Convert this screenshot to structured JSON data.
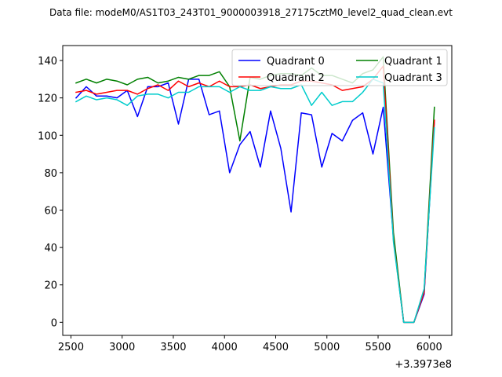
{
  "chart_data": {
    "type": "line",
    "title": "Data file: modeM0/AS1T03_243T01_9000003918_27175cztM0_level2_quad_clean.evt",
    "xlabel": "",
    "ylabel": "",
    "x_offset_label": "+3.3973e8",
    "xlim": [
      2420,
      6220
    ],
    "ylim": [
      -7,
      148
    ],
    "x_ticks": [
      2500,
      3000,
      3500,
      4000,
      4500,
      5000,
      5500,
      6000
    ],
    "x_tick_labels": [
      "2500",
      "3000",
      "3500",
      "4000",
      "4500",
      "5000",
      "5500",
      "6000"
    ],
    "y_ticks": [
      0,
      20,
      40,
      60,
      80,
      100,
      120,
      140
    ],
    "y_tick_labels": [
      "0",
      "20",
      "40",
      "60",
      "80",
      "100",
      "120",
      "140"
    ],
    "grid": false,
    "legend_placement": "top-right",
    "x": [
      2550,
      2650,
      2750,
      2850,
      2950,
      3050,
      3150,
      3250,
      3350,
      3450,
      3550,
      3650,
      3750,
      3850,
      3950,
      4050,
      4150,
      4250,
      4350,
      4450,
      4550,
      4650,
      4750,
      4850,
      4950,
      5050,
      5150,
      5250,
      5350,
      5450,
      5550,
      5650,
      5750,
      5850,
      5950,
      6050
    ],
    "series": [
      {
        "name": "Quadrant 0",
        "color": "#0000ff",
        "values": [
          120,
          126,
          121,
          121,
          120,
          124,
          110,
          126,
          126,
          128,
          106,
          130,
          130,
          111,
          113,
          80,
          95,
          102,
          83,
          113,
          93,
          59,
          112,
          111,
          83,
          101,
          97,
          108,
          112,
          90,
          115,
          45,
          0,
          0,
          15,
          108
        ]
      },
      {
        "name": "Quadrant 1",
        "color": "#008000",
        "values": [
          128,
          130,
          128,
          130,
          129,
          127,
          130,
          131,
          128,
          129,
          131,
          130,
          132,
          132,
          134,
          126,
          97,
          131,
          130,
          132,
          133,
          133,
          132,
          136,
          132,
          132,
          130,
          128,
          133,
          135,
          142,
          48,
          0,
          0,
          17,
          115
        ]
      },
      {
        "name": "Quadrant 2",
        "color": "#ff0000",
        "values": [
          123,
          124,
          122,
          123,
          124,
          124,
          122,
          125,
          127,
          124,
          129,
          126,
          128,
          126,
          129,
          126,
          126,
          127,
          125,
          126,
          127,
          127,
          129,
          129,
          128,
          127,
          124,
          125,
          126,
          130,
          137,
          44,
          0,
          0,
          16,
          108
        ]
      },
      {
        "name": "Quadrant 3",
        "color": "#00cccc",
        "values": [
          118,
          121,
          119,
          120,
          119,
          116,
          121,
          122,
          122,
          120,
          123,
          123,
          126,
          126,
          126,
          123,
          126,
          124,
          124,
          126,
          125,
          125,
          127,
          116,
          123,
          116,
          118,
          118,
          123,
          130,
          128,
          43,
          0,
          0,
          18,
          104
        ]
      }
    ]
  }
}
